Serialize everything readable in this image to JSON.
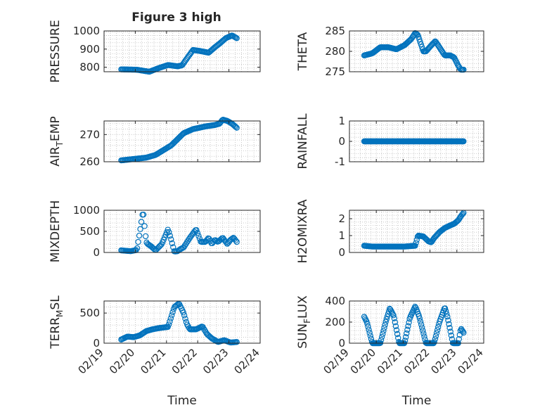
{
  "figure_title": "Figure 3 high",
  "colors": {
    "marker": "#0072BD",
    "axis": "#262626",
    "grid": "#bdbdbd"
  },
  "chart_data": [
    {
      "type": "scatter",
      "ylabel": "PRESSURE",
      "ylim": [
        775,
        1000
      ],
      "yticks": [
        "800",
        "900",
        "1000"
      ],
      "ytick_values": [
        800,
        900,
        1000
      ],
      "grid": true,
      "knots_x": [
        0.0,
        0.5,
        0.9,
        1.2,
        1.5,
        1.8,
        1.95,
        2.05,
        2.3,
        2.5,
        2.8,
        3.0,
        3.15,
        3.35,
        3.55,
        3.7
      ],
      "knots_y": [
        788,
        786,
        775,
        795,
        812,
        805,
        810,
        835,
        895,
        890,
        880,
        910,
        930,
        960,
        975,
        960
      ],
      "n": 120
    },
    {
      "type": "scatter",
      "ylabel": "THETA",
      "ylim": [
        275,
        285
      ],
      "yticks": [
        "275",
        "280",
        "285"
      ],
      "ytick_values": [
        275,
        280,
        285
      ],
      "grid": true,
      "knots_x": [
        0.0,
        0.3,
        0.6,
        0.9,
        1.2,
        1.5,
        1.75,
        1.9,
        2.0,
        2.1,
        2.2,
        2.3,
        2.5,
        2.65,
        2.85,
        3.0,
        3.2,
        3.35,
        3.5,
        3.6,
        3.7
      ],
      "knots_y": [
        279,
        279.5,
        281,
        281,
        280.5,
        281.5,
        283,
        284.5,
        284,
        282,
        280,
        280,
        281.5,
        282.5,
        280.5,
        279,
        279,
        278.5,
        276.5,
        275.5,
        275.5
      ],
      "n": 120
    },
    {
      "type": "scatter",
      "ylabel": "AIR",
      "ylabel_sub": "T",
      "ylabel_rest": "EMP",
      "ylim": [
        260,
        275
      ],
      "yticks": [
        "260",
        "270"
      ],
      "ytick_values": [
        260,
        270
      ],
      "grid": true,
      "knots_x": [
        0.0,
        0.4,
        0.8,
        1.1,
        1.6,
        2.0,
        2.3,
        2.7,
        3.0,
        3.15,
        3.25,
        3.4,
        3.55,
        3.7
      ],
      "knots_y": [
        260.5,
        261,
        261.5,
        262.5,
        266,
        270.5,
        272,
        273,
        273.5,
        274,
        275.5,
        275,
        274,
        272.5
      ],
      "n": 120
    },
    {
      "type": "scatter",
      "ylabel": "RAINFALL",
      "ylim": [
        -1,
        1
      ],
      "yticks": [
        "-1",
        "0",
        "1"
      ],
      "ytick_values": [
        -1,
        0,
        1
      ],
      "grid": true,
      "knots_x": [
        0.0,
        3.7
      ],
      "knots_y": [
        0,
        0
      ],
      "n": 140
    },
    {
      "type": "scatter",
      "ylabel": "MIXDEPTH",
      "ylim": [
        0,
        1000
      ],
      "yticks": [
        "0",
        "500",
        "1000"
      ],
      "ytick_values": [
        0,
        500,
        1000
      ],
      "grid": true,
      "knots_x": [
        0.0,
        0.3,
        0.5,
        0.6,
        0.7,
        0.75,
        0.8,
        0.85,
        0.95,
        1.1,
        1.3,
        1.5,
        1.6,
        1.7,
        1.8,
        1.9,
        2.0,
        2.2,
        2.4,
        2.55,
        2.7,
        2.8,
        2.9,
        3.0,
        3.1,
        3.25,
        3.4,
        3.5,
        3.6,
        3.7
      ],
      "knots_y": [
        50,
        30,
        60,
        500,
        1000,
        600,
        250,
        200,
        150,
        50,
        200,
        550,
        300,
        20,
        30,
        80,
        120,
        350,
        550,
        250,
        250,
        350,
        200,
        300,
        250,
        350,
        200,
        300,
        350,
        250
      ],
      "n": 110
    },
    {
      "type": "scatter",
      "ylabel": "H2OMIXRA",
      "ylim": [
        0,
        2.5
      ],
      "yticks": [
        "0",
        "1",
        "2"
      ],
      "ytick_values": [
        0,
        1,
        2
      ],
      "grid": true,
      "knots_x": [
        0.0,
        0.3,
        0.8,
        1.2,
        1.5,
        1.9,
        2.0,
        2.2,
        2.4,
        2.5,
        2.6,
        2.8,
        3.0,
        3.2,
        3.35,
        3.5,
        3.6,
        3.7
      ],
      "knots_y": [
        0.4,
        0.35,
        0.35,
        0.35,
        0.35,
        0.4,
        1.0,
        0.95,
        0.65,
        0.6,
        0.85,
        1.2,
        1.45,
        1.6,
        1.7,
        1.9,
        2.15,
        2.35
      ],
      "n": 120
    },
    {
      "type": "scatter",
      "ylabel": "TERR",
      "ylabel_sub": "M",
      "ylabel_rest": "SL",
      "ylim": [
        0,
        700
      ],
      "yticks": [
        "0",
        "500"
      ],
      "ytick_values": [
        0,
        500
      ],
      "grid": true,
      "knots_x": [
        0.0,
        0.2,
        0.4,
        0.6,
        0.8,
        1.0,
        1.2,
        1.5,
        1.7,
        1.85,
        2.0,
        2.1,
        2.2,
        2.4,
        2.6,
        2.75,
        2.9,
        3.0,
        3.1,
        3.3,
        3.5,
        3.7
      ],
      "knots_y": [
        60,
        110,
        100,
        130,
        200,
        230,
        250,
        270,
        600,
        660,
        500,
        320,
        230,
        230,
        280,
        150,
        80,
        50,
        20,
        50,
        10,
        20
      ],
      "n": 120
    },
    {
      "type": "scatter",
      "ylabel": "SUN",
      "ylabel_sub": "F",
      "ylabel_rest": "LUX",
      "ylim": [
        0,
        400
      ],
      "yticks": [
        "0",
        "200",
        "400"
      ],
      "ytick_values": [
        0,
        200,
        400
      ],
      "grid": true,
      "knots_x": [
        0.0,
        0.1,
        0.3,
        0.4,
        0.6,
        0.8,
        0.95,
        1.1,
        1.3,
        1.4,
        1.5,
        1.7,
        1.9,
        2.05,
        2.3,
        2.5,
        2.6,
        2.8,
        3.0,
        3.1,
        3.3,
        3.5,
        3.6,
        3.7
      ],
      "knots_y": [
        250,
        200,
        0,
        0,
        0,
        200,
        330,
        260,
        0,
        0,
        0,
        240,
        350,
        250,
        0,
        0,
        0,
        200,
        340,
        250,
        0,
        0,
        140,
        100
      ],
      "n": 130
    }
  ],
  "x_axis": {
    "xlabel": "Time",
    "xticks": [
      "02/19",
      "02/20",
      "02/21",
      "02/22",
      "02/23",
      "02/24"
    ],
    "xtick_values": [
      0,
      1,
      2,
      3,
      4,
      5
    ],
    "xlim": [
      0,
      5
    ],
    "data_start": 0.55,
    "data_end": 4.25
  }
}
